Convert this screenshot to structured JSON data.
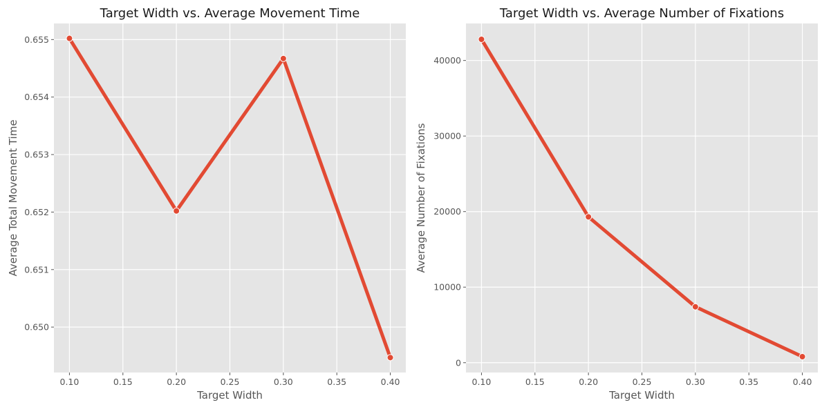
{
  "chart_data": [
    {
      "type": "line",
      "title": "Target Width vs. Average Movement Time",
      "xlabel": "Target Width",
      "ylabel": "Average Total Movement Time",
      "x": [
        0.1,
        0.2,
        0.3,
        0.4
      ],
      "series": [
        {
          "values": [
            0.65502,
            0.65202,
            0.65467,
            0.64947
          ],
          "color": "#e24a33"
        }
      ],
      "xlim": [
        0.0855,
        0.4145
      ],
      "ylim": [
        0.64921,
        0.65528
      ],
      "xticks": [
        0.1,
        0.15,
        0.2,
        0.25,
        0.3,
        0.35,
        0.4
      ],
      "xtick_labels": [
        "0.10",
        "0.15",
        "0.20",
        "0.25",
        "0.30",
        "0.35",
        "0.40"
      ],
      "yticks": [
        0.65,
        0.651,
        0.652,
        0.653,
        0.654,
        0.655
      ],
      "ytick_labels": [
        "0.650",
        "0.651",
        "0.652",
        "0.653",
        "0.654",
        "0.655"
      ],
      "grid": true,
      "background": "#e5e5e5"
    },
    {
      "type": "line",
      "title": "Target Width vs. Average Number of Fixations",
      "xlabel": "Target Width",
      "ylabel": "Average Number of Fixations",
      "x": [
        0.1,
        0.2,
        0.3,
        0.4
      ],
      "series": [
        {
          "values": [
            42800,
            19300,
            7400,
            800
          ],
          "color": "#e24a33"
        }
      ],
      "xlim": [
        0.0855,
        0.4145
      ],
      "ylim": [
        -1300,
        44900
      ],
      "xticks": [
        0.1,
        0.15,
        0.2,
        0.25,
        0.3,
        0.35,
        0.4
      ],
      "xtick_labels": [
        "0.10",
        "0.15",
        "0.20",
        "0.25",
        "0.30",
        "0.35",
        "0.40"
      ],
      "yticks": [
        0,
        10000,
        20000,
        30000,
        40000
      ],
      "ytick_labels": [
        "0",
        "10000",
        "20000",
        "30000",
        "40000"
      ],
      "grid": true,
      "background": "#e5e5e5"
    }
  ]
}
